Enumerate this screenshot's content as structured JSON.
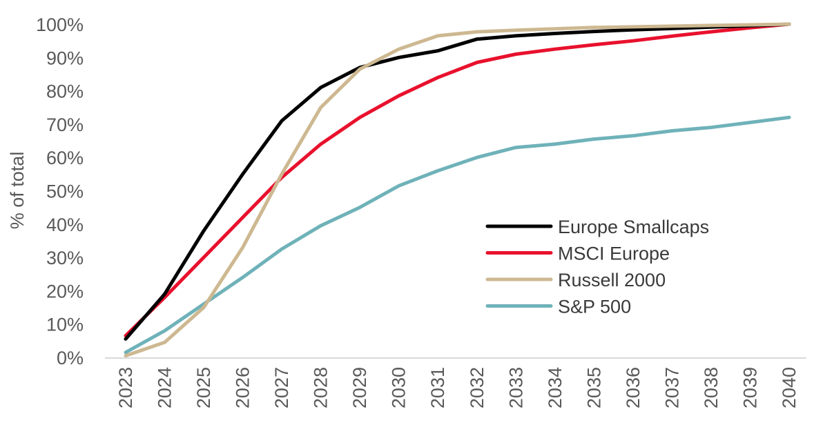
{
  "chart_data": {
    "type": "line",
    "title": "",
    "xlabel": "",
    "ylabel": "% of total",
    "x": [
      "2023",
      "2024",
      "2025",
      "2026",
      "2027",
      "2028",
      "2029",
      "2030",
      "2031",
      "2032",
      "2033",
      "2034",
      "2035",
      "2036",
      "2037",
      "2038",
      "2039",
      "2040"
    ],
    "ylim": [
      0,
      100
    ],
    "yticks": [
      "0%",
      "10%",
      "20%",
      "30%",
      "40%",
      "50%",
      "60%",
      "70%",
      "80%",
      "90%",
      "100%"
    ],
    "grid": false,
    "legend_position": "right",
    "series": [
      {
        "name": "Europe Smallcaps",
        "color": "#000000",
        "values": [
          5.5,
          19,
          38,
          55,
          71,
          81,
          87,
          90,
          92,
          95.5,
          96.5,
          97.2,
          97.8,
          98.3,
          98.7,
          99.1,
          99.5,
          100
        ]
      },
      {
        "name": "MSCI Europe",
        "color": "#e8112d",
        "values": [
          6.5,
          18,
          30,
          42,
          54,
          64,
          72,
          78.5,
          84,
          88.5,
          91,
          92.5,
          93.8,
          95,
          96.4,
          97.7,
          98.9,
          100
        ]
      },
      {
        "name": "Russell 2000",
        "color": "#cdb891",
        "values": [
          0.5,
          4.5,
          15,
          33,
          55,
          75,
          86.5,
          92.5,
          96.5,
          97.7,
          98.2,
          98.6,
          99,
          99.2,
          99.4,
          99.6,
          99.8,
          100
        ]
      },
      {
        "name": "S&P 500",
        "color": "#6fb2b9",
        "values": [
          1.5,
          8,
          16,
          24,
          32.5,
          39.5,
          45,
          51.5,
          56,
          60,
          63,
          64,
          65.5,
          66.5,
          68,
          69,
          70.5,
          72
        ]
      }
    ]
  }
}
